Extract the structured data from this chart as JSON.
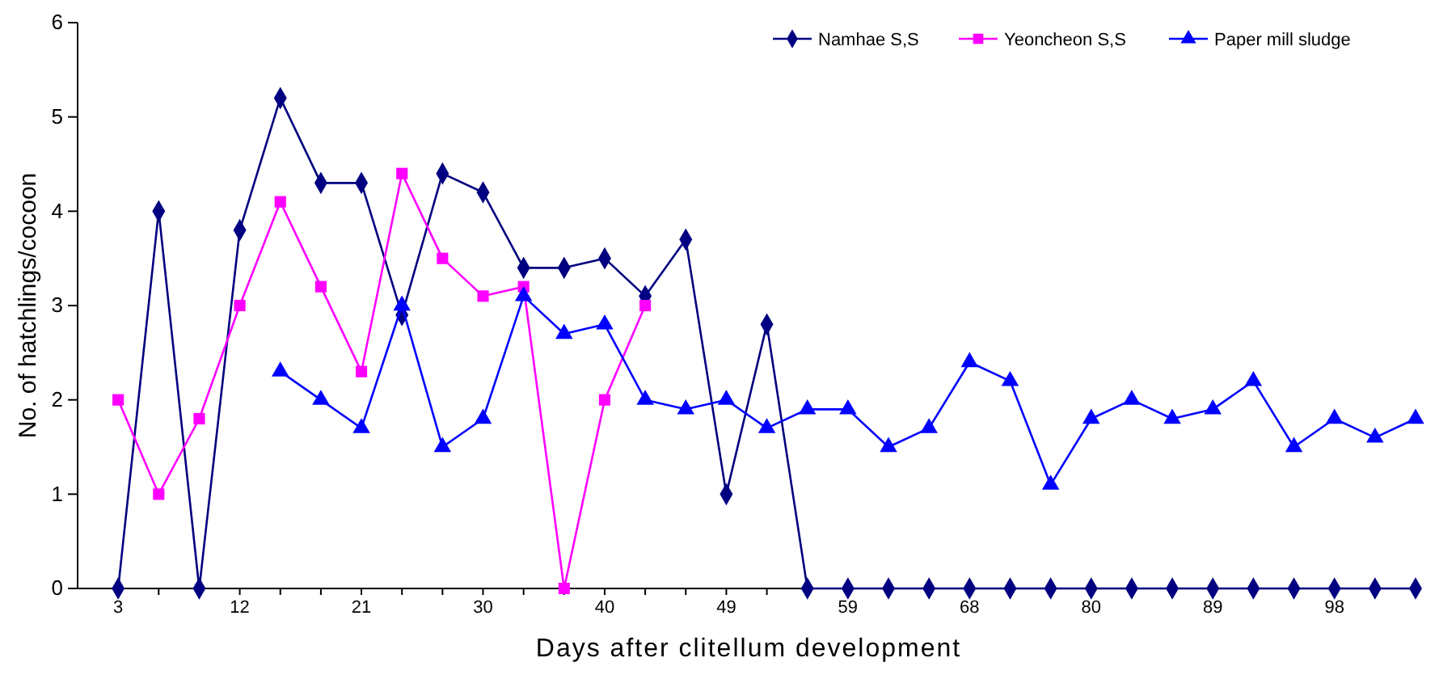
{
  "chart_data": {
    "type": "line",
    "xlabel": "Days after clitellum development",
    "ylabel": "No. of hatchlings/cocoon",
    "categories": [
      "3",
      null,
      null,
      "12",
      null,
      null,
      "21",
      null,
      null,
      "30",
      null,
      null,
      "40",
      null,
      null,
      "49",
      null,
      null,
      "59",
      null,
      null,
      "68",
      null,
      null,
      "80",
      null,
      null,
      "89",
      null,
      null,
      "98",
      null,
      null
    ],
    "ylim": [
      0,
      6
    ],
    "yticks": [
      0,
      1,
      2,
      3,
      4,
      5,
      6
    ],
    "grid": false,
    "legend": "top right",
    "series": [
      {
        "name": "Namhae S,S",
        "color": "#000080",
        "marker": "diamond",
        "values": [
          0,
          4,
          0,
          3.8,
          5.2,
          4.3,
          4.3,
          2.9,
          4.4,
          4.2,
          3.4,
          3.4,
          3.5,
          3.1,
          3.7,
          1.0,
          2.8,
          0,
          0,
          0,
          0,
          0,
          0,
          0,
          0,
          0,
          0,
          0,
          0,
          0,
          0,
          0,
          0
        ]
      },
      {
        "name": "Yeoncheon S,S",
        "color": "#ff00ff",
        "marker": "square",
        "values": [
          2.0,
          1.0,
          1.8,
          3.0,
          4.1,
          3.2,
          2.3,
          4.4,
          3.5,
          3.1,
          3.2,
          0,
          2.0,
          3.0,
          null,
          null,
          null,
          null,
          null,
          null,
          null,
          null,
          null,
          null,
          null,
          null,
          null,
          null,
          null,
          null,
          null,
          null,
          null
        ]
      },
      {
        "name": "Paper mill sludge",
        "color": "#0000ff",
        "marker": "triangle",
        "values": [
          null,
          null,
          null,
          null,
          2.3,
          2.0,
          1.7,
          3.0,
          1.5,
          1.8,
          3.1,
          2.7,
          2.8,
          2.0,
          1.9,
          2.0,
          1.7,
          1.9,
          1.9,
          1.5,
          1.7,
          2.4,
          2.2,
          1.1,
          1.8,
          2.0,
          1.8,
          1.9,
          2.2,
          1.5,
          1.8,
          1.6,
          1.8
        ]
      }
    ]
  }
}
